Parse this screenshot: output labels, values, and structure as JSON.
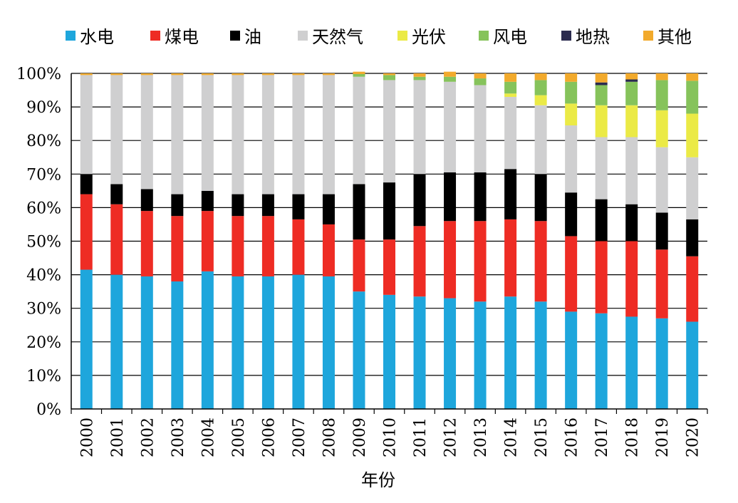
{
  "chart_data": {
    "type": "bar",
    "stacked": true,
    "normalized": true,
    "xlabel": "年份",
    "ylabel": "",
    "ylim": [
      0,
      100
    ],
    "yticks": [
      "0%",
      "10%",
      "20%",
      "30%",
      "40%",
      "50%",
      "60%",
      "70%",
      "80%",
      "90%",
      "100%"
    ],
    "grid": true,
    "legend_position": "top",
    "categories": [
      "2000",
      "2001",
      "2002",
      "2003",
      "2004",
      "2005",
      "2006",
      "2007",
      "2008",
      "2009",
      "2010",
      "2011",
      "2012",
      "2013",
      "2014",
      "2015",
      "2016",
      "2017",
      "2018",
      "2019",
      "2020"
    ],
    "series": [
      {
        "name": "水电",
        "color": "#1ea6dc",
        "values": [
          41.5,
          40,
          39.5,
          38,
          41,
          39.5,
          39.5,
          40,
          39.5,
          35,
          34,
          33.5,
          33,
          32,
          33.5,
          32,
          29,
          28.5,
          27.5,
          27,
          26
        ]
      },
      {
        "name": "煤电",
        "color": "#ee2c24",
        "values": [
          22.5,
          21,
          19.5,
          19.5,
          18,
          18,
          18,
          16.5,
          15.5,
          15.5,
          16.5,
          21,
          23,
          24,
          23,
          24,
          22.5,
          21.5,
          22.5,
          20.5,
          19.5
        ]
      },
      {
        "name": "油",
        "color": "#000000",
        "values": [
          6,
          6,
          6.5,
          6.5,
          6,
          6.5,
          6.5,
          7.5,
          9,
          16.5,
          17,
          15.5,
          14.5,
          14.5,
          15,
          14,
          13,
          12.5,
          11,
          11,
          11
        ]
      },
      {
        "name": "天然气",
        "color": "#cfcfd0",
        "values": [
          29.5,
          32.5,
          34,
          35.5,
          34.5,
          35.5,
          35.5,
          35.5,
          35.5,
          32,
          30.5,
          28,
          27,
          26,
          21.5,
          20.5,
          20,
          18.5,
          20,
          19.5,
          18.5
        ]
      },
      {
        "name": "光伏",
        "color": "#ebea46",
        "values": [
          0,
          0,
          0,
          0,
          0,
          0,
          0,
          0,
          0,
          0,
          0,
          0,
          0,
          0,
          1,
          3,
          6.5,
          9.5,
          9.5,
          11,
          13
        ]
      },
      {
        "name": "风电",
        "color": "#86c35b",
        "values": [
          0,
          0,
          0,
          0,
          0,
          0,
          0,
          0,
          0,
          0.8,
          1.5,
          1,
          1.5,
          2,
          3.5,
          4.5,
          6.5,
          6,
          7,
          9,
          9.8
        ]
      },
      {
        "name": "地热",
        "color": "#2b2b4e",
        "values": [
          0,
          0,
          0,
          0,
          0,
          0,
          0,
          0,
          0,
          0,
          0,
          0,
          0,
          0,
          0,
          0,
          0,
          0.8,
          0.7,
          0,
          0
        ]
      },
      {
        "name": "其他",
        "color": "#f2aa2c",
        "values": [
          0.5,
          0.5,
          0.5,
          0.5,
          0.5,
          0.5,
          0.5,
          0.5,
          0.5,
          0.7,
          0.5,
          1,
          1.5,
          1.5,
          2.5,
          2,
          2.5,
          2.7,
          1.8,
          2,
          2.2
        ]
      }
    ]
  }
}
